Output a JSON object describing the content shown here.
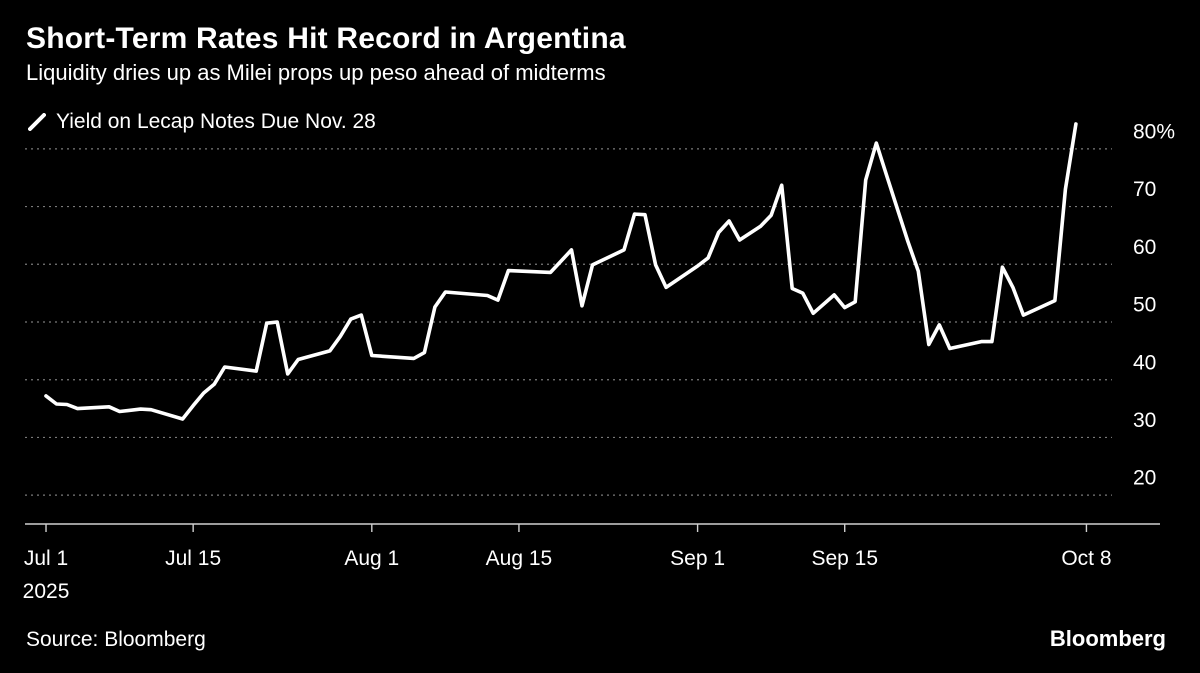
{
  "header": {
    "title": "Short-Term Rates Hit Record in Argentina",
    "subtitle": "Liquidity dries up as Milei props up peso ahead of midterms"
  },
  "footer": {
    "source": "Source: Bloomberg",
    "brand": "Bloomberg"
  },
  "colors": {
    "background": "#000000",
    "line": "#ffffff",
    "grid": "#7a7a7a",
    "text": "#ffffff"
  },
  "chart_data": {
    "type": "line",
    "title": "Short-Term Rates Hit Record in Argentina",
    "subtitle": "Liquidity dries up as Milei props up peso ahead of midterms",
    "xlabel": "",
    "ylabel": "",
    "ylim": [
      15,
      85
    ],
    "xlim": [
      -2,
      106
    ],
    "grid": true,
    "legend": "top-left",
    "y_ticks": [
      {
        "value": 80,
        "label": "80%"
      },
      {
        "value": 70,
        "label": "70"
      },
      {
        "value": 60,
        "label": "60"
      },
      {
        "value": 50,
        "label": "50"
      },
      {
        "value": 40,
        "label": "40"
      },
      {
        "value": 30,
        "label": "30"
      },
      {
        "value": 20,
        "label": "20"
      }
    ],
    "x_ticks": [
      {
        "day": 0,
        "label": "Jul 1",
        "sublabel": "2025"
      },
      {
        "day": 14,
        "label": "Jul 15",
        "sublabel": ""
      },
      {
        "day": 31,
        "label": "Aug 1",
        "sublabel": ""
      },
      {
        "day": 45,
        "label": "Aug 15",
        "sublabel": ""
      },
      {
        "day": 62,
        "label": "Sep 1",
        "sublabel": ""
      },
      {
        "day": 76,
        "label": "Sep 15",
        "sublabel": ""
      },
      {
        "day": 99,
        "label": "Oct 8",
        "sublabel": ""
      }
    ],
    "series": [
      {
        "name": "Yield on Lecap Notes Due Nov. 28",
        "x_unit": "days since Jul 1, 2025",
        "points": [
          [
            0,
            37.2
          ],
          [
            1,
            35.8
          ],
          [
            2,
            35.7
          ],
          [
            3,
            35.0
          ],
          [
            6,
            35.3
          ],
          [
            7,
            34.5
          ],
          [
            9,
            34.9
          ],
          [
            10,
            34.8
          ],
          [
            13,
            33.2
          ],
          [
            14,
            35.5
          ],
          [
            15,
            37.7
          ],
          [
            16,
            39.2
          ],
          [
            17,
            42.2
          ],
          [
            20,
            41.5
          ],
          [
            21,
            49.8
          ],
          [
            22,
            50.0
          ],
          [
            23,
            41.0
          ],
          [
            24,
            43.5
          ],
          [
            27,
            45.0
          ],
          [
            28,
            47.5
          ],
          [
            29,
            50.5
          ],
          [
            30,
            51.2
          ],
          [
            31,
            44.2
          ],
          [
            35,
            43.7
          ],
          [
            36,
            44.7
          ],
          [
            37,
            52.6
          ],
          [
            38,
            55.2
          ],
          [
            42,
            54.6
          ],
          [
            43,
            53.8
          ],
          [
            44,
            58.9
          ],
          [
            48,
            58.6
          ],
          [
            50,
            62.5
          ],
          [
            51,
            52.8
          ],
          [
            52,
            59.9
          ],
          [
            55,
            62.5
          ],
          [
            56,
            68.7
          ],
          [
            57,
            68.6
          ],
          [
            58,
            59.9
          ],
          [
            59,
            56.0
          ],
          [
            62,
            59.7
          ],
          [
            63,
            61.1
          ],
          [
            64,
            65.5
          ],
          [
            65,
            67.5
          ],
          [
            66,
            64.2
          ],
          [
            68,
            66.6
          ],
          [
            69,
            68.5
          ],
          [
            70,
            73.7
          ],
          [
            71,
            55.8
          ],
          [
            72,
            55.0
          ],
          [
            73,
            51.5
          ],
          [
            75,
            54.7
          ],
          [
            76,
            52.5
          ],
          [
            77,
            53.5
          ],
          [
            78,
            74.6
          ],
          [
            79,
            81.0
          ],
          [
            80,
            75.3
          ],
          [
            82,
            64.0
          ],
          [
            83,
            58.8
          ],
          [
            84,
            46.1
          ],
          [
            85,
            49.5
          ],
          [
            86,
            45.4
          ],
          [
            89,
            46.6
          ],
          [
            90,
            46.6
          ],
          [
            91,
            59.5
          ],
          [
            92,
            56.0
          ],
          [
            93,
            51.2
          ],
          [
            96,
            53.7
          ],
          [
            97,
            73.0
          ],
          [
            98,
            84.3
          ]
        ]
      }
    ]
  }
}
